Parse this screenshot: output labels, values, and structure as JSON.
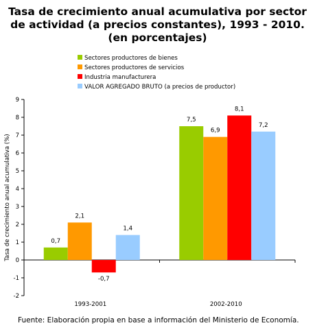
{
  "chart_data": {
    "type": "bar",
    "title_lines": [
      "Tasa de crecimiento anual acumulativa por sector",
      "de actividad (a precios constantes), 1993 - 2010.",
      "(en porcentajes)"
    ],
    "ylabel": "Tasa de crecimiento anual acumulativa (%)",
    "xlabel": "",
    "ylim": [
      -2,
      9
    ],
    "yticks": [
      "9",
      "8",
      "7",
      "6",
      "5",
      "4",
      "3",
      "2",
      "1",
      "0",
      "-1",
      "-2"
    ],
    "categories": [
      "1993-2001",
      "2002-2010"
    ],
    "legend_position": "top",
    "series": [
      {
        "name": "Sectores productores de bienes",
        "color": "#99cc00",
        "values": [
          0.7,
          7.5
        ],
        "labels": [
          "0,7",
          "7,5"
        ]
      },
      {
        "name": "Sectores productores de servicios",
        "color": "#ff9900",
        "values": [
          2.1,
          6.9
        ],
        "labels": [
          "2,1",
          "6,9"
        ]
      },
      {
        "name": "Industria manufacturera",
        "color": "#ff0000",
        "values": [
          -0.7,
          8.1
        ],
        "labels": [
          "-0,7",
          "8,1"
        ]
      },
      {
        "name": "VALOR AGREGADO BRUTO (a precios de productor)",
        "color": "#99ccff",
        "values": [
          1.4,
          7.2
        ],
        "labels": [
          "1,4",
          "7,2"
        ]
      }
    ],
    "source": "Fuente: Elaboración propia en base a información del Ministerio de Economía."
  }
}
